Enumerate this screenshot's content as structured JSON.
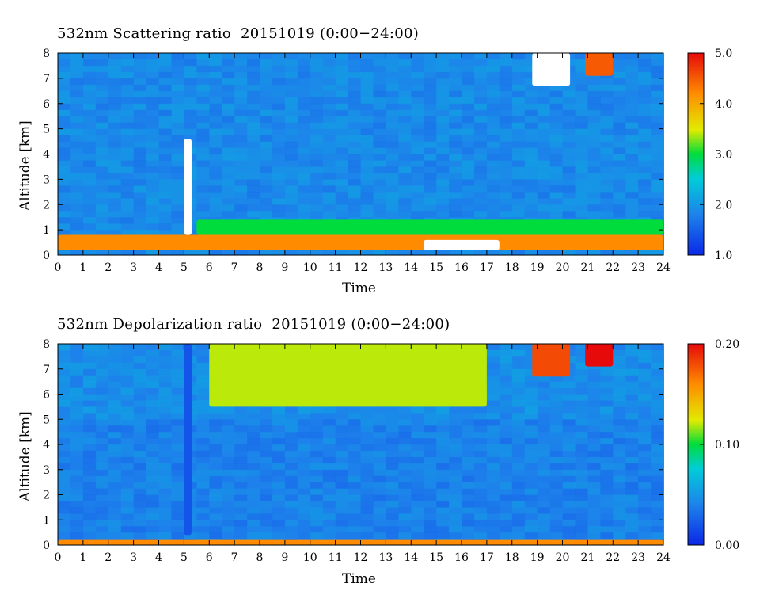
{
  "chart_data": [
    {
      "type": "heatmap",
      "title": "532nm Scattering ratio  20151019 (0:00−24:00)",
      "xlabel": "Time",
      "ylabel": "Altitude [km]",
      "xlim": [
        0,
        24
      ],
      "ylim": [
        0,
        8
      ],
      "x_ticks": [
        "0",
        "1",
        "2",
        "3",
        "4",
        "5",
        "6",
        "7",
        "8",
        "9",
        "10",
        "11",
        "12",
        "13",
        "14",
        "15",
        "16",
        "17",
        "18",
        "19",
        "20",
        "21",
        "22",
        "23",
        "24"
      ],
      "y_ticks": [
        "0",
        "1",
        "2",
        "3",
        "4",
        "5",
        "6",
        "7",
        "8"
      ],
      "colorbar": {
        "min": 1.0,
        "max": 5.0,
        "tick_labels": [
          "1.0",
          "2.0",
          "3.0",
          "4.0",
          "5.0"
        ],
        "tick_values": [
          1.0,
          2.0,
          3.0,
          4.0,
          5.0
        ]
      },
      "features": [
        {
          "name": "boundary layer",
          "time": [
            0,
            24
          ],
          "altitude_km": [
            0.2,
            0.8
          ],
          "value": 4.2
        },
        {
          "name": "elevated aerosol layer",
          "time": [
            5.5,
            24
          ],
          "altitude_km": [
            0.8,
            1.4
          ],
          "value": 3.0
        },
        {
          "name": "saturated aerosol",
          "time": [
            14.5,
            17.5
          ],
          "altitude_km": [
            0.2,
            0.6
          ],
          "value": 5.0
        },
        {
          "name": "low cloud column",
          "time": [
            5.0,
            5.3
          ],
          "altitude_km": [
            0.8,
            4.6
          ],
          "value": 5.0
        },
        {
          "name": "upper cloud",
          "time": [
            18.8,
            20.3
          ],
          "altitude_km": [
            6.7,
            8.0
          ],
          "value": 5.0
        },
        {
          "name": "upper cloud",
          "time": [
            20.9,
            22.0
          ],
          "altitude_km": [
            7.1,
            8.0
          ],
          "value": 4.5
        }
      ]
    },
    {
      "type": "heatmap",
      "title": "532nm Depolarization ratio  20151019 (0:00−24:00)",
      "xlabel": "Time",
      "ylabel": "Altitude [km]",
      "xlim": [
        0,
        24
      ],
      "ylim": [
        0,
        8
      ],
      "x_ticks": [
        "0",
        "1",
        "2",
        "3",
        "4",
        "5",
        "6",
        "7",
        "8",
        "9",
        "10",
        "11",
        "12",
        "13",
        "14",
        "15",
        "16",
        "17",
        "18",
        "19",
        "20",
        "21",
        "22",
        "23",
        "24"
      ],
      "y_ticks": [
        "0",
        "1",
        "2",
        "3",
        "4",
        "5",
        "6",
        "7",
        "8"
      ],
      "colorbar": {
        "min": 0.0,
        "max": 0.2,
        "tick_labels": [
          "0.00",
          "0.10",
          "0.20"
        ],
        "tick_values": [
          0.0,
          0.1,
          0.2
        ]
      },
      "features": [
        {
          "name": "surface layer",
          "time": [
            0,
            24
          ],
          "altitude_km": [
            0.0,
            0.2
          ],
          "value": 0.16
        },
        {
          "name": "low cloud column",
          "time": [
            5.0,
            5.3
          ],
          "altitude_km": [
            0.4,
            8.0
          ],
          "value": 0.02
        },
        {
          "name": "upper noisy region",
          "time": [
            6,
            17
          ],
          "altitude_km": [
            5.5,
            8.0
          ],
          "value": 0.12
        },
        {
          "name": "upper cloud",
          "time": [
            18.8,
            20.3
          ],
          "altitude_km": [
            6.7,
            8.0
          ],
          "value": 0.18
        },
        {
          "name": "upper cloud",
          "time": [
            20.9,
            22.0
          ],
          "altitude_km": [
            7.1,
            8.0
          ],
          "value": 0.2
        }
      ]
    }
  ]
}
